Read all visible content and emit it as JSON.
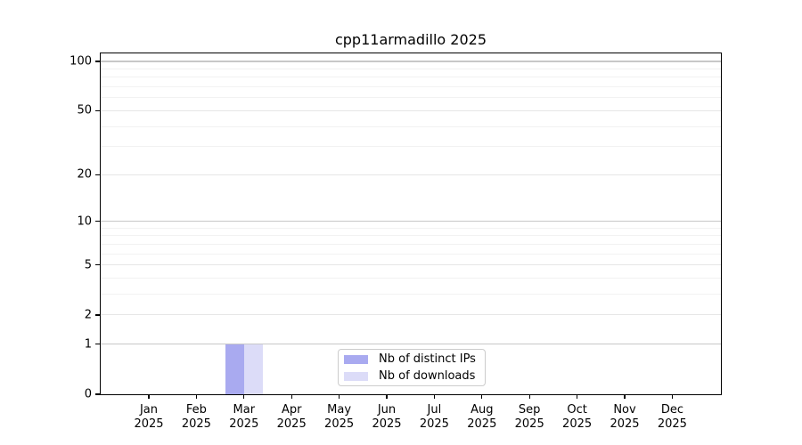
{
  "chart_data": {
    "type": "bar",
    "title": "cpp11armadillo 2025",
    "categories": [
      "Jan 2025",
      "Feb 2025",
      "Mar 2025",
      "Apr 2025",
      "May 2025",
      "Jun 2025",
      "Jul 2025",
      "Aug 2025",
      "Sep 2025",
      "Oct 2025",
      "Nov 2025",
      "Dec 2025"
    ],
    "months": [
      "Jan",
      "Feb",
      "Mar",
      "Apr",
      "May",
      "Jun",
      "Jul",
      "Aug",
      "Sep",
      "Oct",
      "Nov",
      "Dec"
    ],
    "year": "2025",
    "series": [
      {
        "name": "Nb of distinct IPs",
        "color": "#a9aaf0",
        "values": [
          0,
          0,
          1,
          0,
          0,
          0,
          0,
          0,
          0,
          0,
          0,
          0
        ]
      },
      {
        "name": "Nb of downloads",
        "color": "#dcdcf8",
        "values": [
          0,
          0,
          1,
          0,
          0,
          0,
          0,
          0,
          0,
          0,
          0,
          0
        ]
      }
    ],
    "yscale": "log1p",
    "ylim": [
      0,
      112
    ],
    "ytick_values": [
      0,
      1,
      2,
      5,
      10,
      20,
      50,
      100
    ],
    "ytick_labels": [
      "0",
      "1",
      "2",
      "5",
      "10",
      "20",
      "50",
      "100"
    ],
    "minor_ytick_values": [
      3,
      4,
      6,
      7,
      8,
      9,
      30,
      40,
      60,
      70,
      80,
      90
    ],
    "grid": true,
    "legend_position": "lower center",
    "colors": {
      "grid_major": "#c8c8c8",
      "grid_mid": "#e6e6e6",
      "grid_minor": "#f2f2f2",
      "axis": "#000000",
      "legend_border": "#cccccc",
      "background": "#ffffff"
    }
  }
}
